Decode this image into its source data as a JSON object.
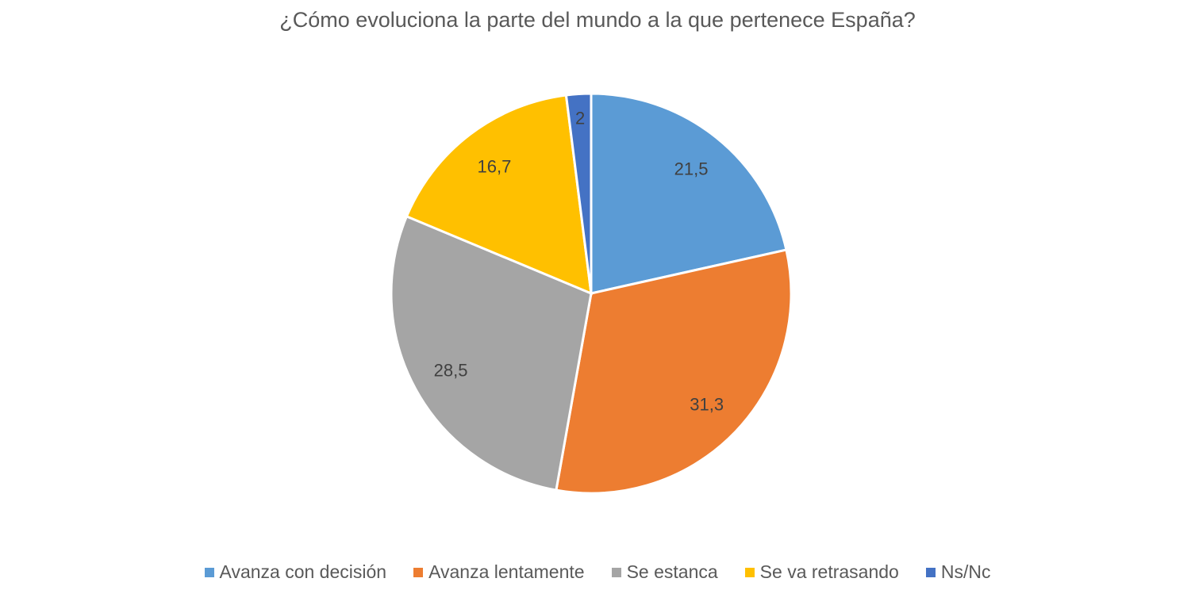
{
  "chart_data": {
    "type": "pie",
    "title": "¿Cómo evoluciona la parte del mundo a la que pertenece España?",
    "categories": [
      "Avanza con decisión",
      "Avanza lentamente",
      "Se estanca",
      "Se va retrasando",
      "Ns/Nc"
    ],
    "values": [
      21.5,
      31.3,
      28.5,
      16.7,
      2
    ],
    "data_labels": [
      "21,5",
      "31,3",
      "28,5",
      "16,7",
      "2"
    ],
    "colors": [
      "#5B9BD5",
      "#ED7D31",
      "#A5A5A5",
      "#FFC000",
      "#4472C4"
    ],
    "start_angle": "top",
    "direction": "clockwise",
    "legend": "bottom"
  }
}
